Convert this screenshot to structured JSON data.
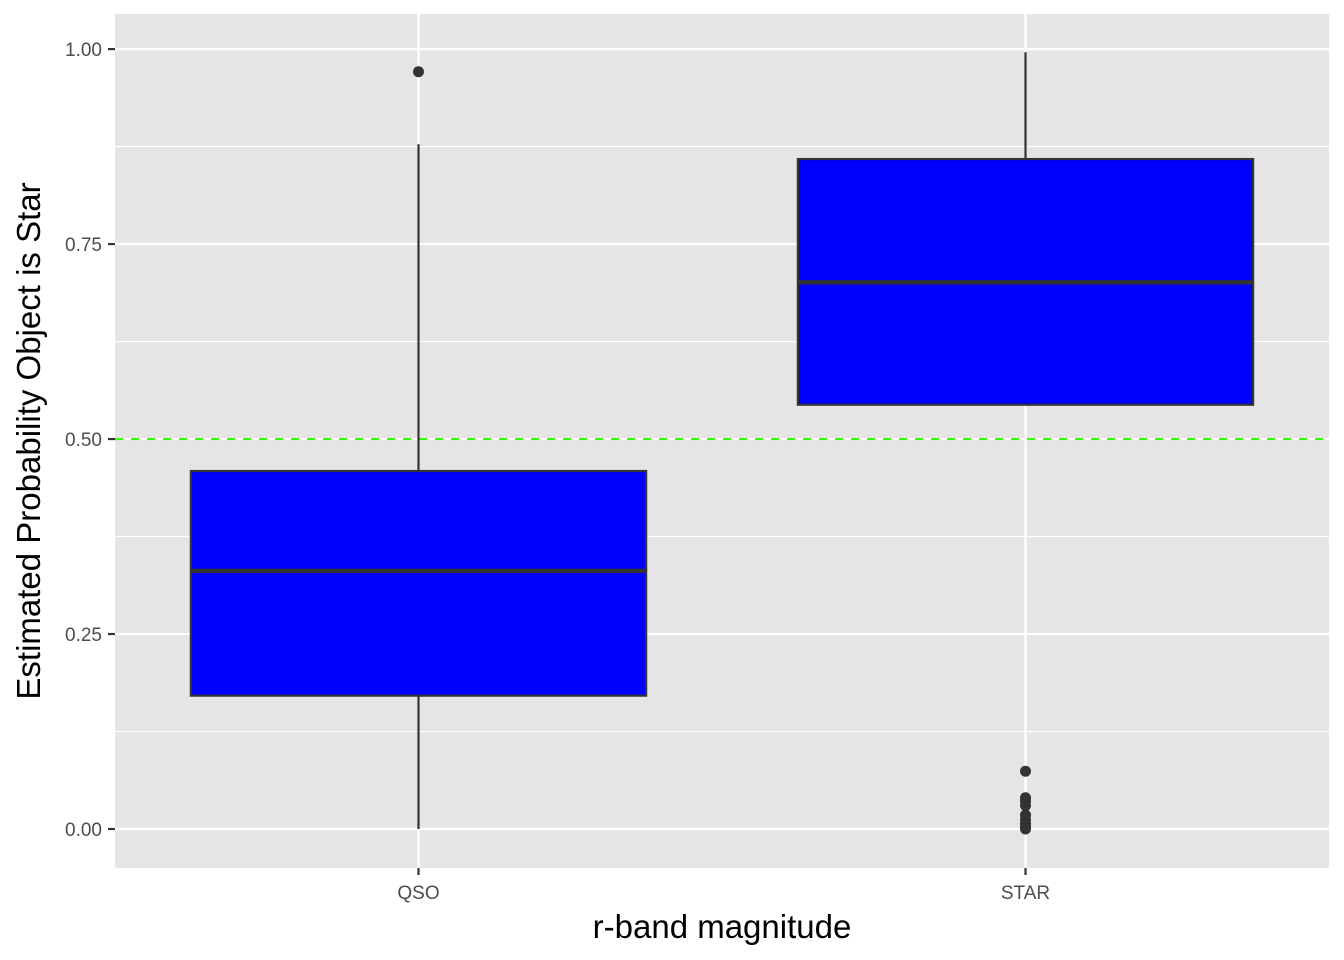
{
  "chart_data": {
    "type": "box",
    "title": "",
    "xlabel": "r-band magnitude",
    "ylabel": "Estimated Probability Object is Star",
    "categories": [
      "QSO",
      "STAR"
    ],
    "ylim": [
      -0.05,
      1.045
    ],
    "y_ticks": [
      0.0,
      0.25,
      0.5,
      0.75,
      1.0
    ],
    "y_tick_labels": [
      "0.00",
      "0.25",
      "0.50",
      "0.75",
      "1.00"
    ],
    "grid": true,
    "legend": "none",
    "boxes": [
      {
        "category": "QSO",
        "whisker_low": 0.0,
        "q1": 0.171,
        "median": 0.331,
        "q3": 0.459,
        "whisker_high": 0.878,
        "outliers": [
          0.971
        ]
      },
      {
        "category": "STAR",
        "whisker_low": 0.544,
        "q1": 0.544,
        "median": 0.701,
        "q3": 0.859,
        "whisker_high": 0.996,
        "outliers": [
          0.074,
          0.04,
          0.036,
          0.03,
          0.018,
          0.012,
          0.007,
          0.003,
          0.0
        ]
      }
    ],
    "reference_line": {
      "y": 0.5,
      "style": "dashed",
      "color": "#33FF00"
    },
    "colors": {
      "box_fill": "#0000FF",
      "box_stroke": "#333333",
      "panel_bg": "#E5E5E5",
      "grid": "#FFFFFF",
      "point": "#333333"
    }
  }
}
